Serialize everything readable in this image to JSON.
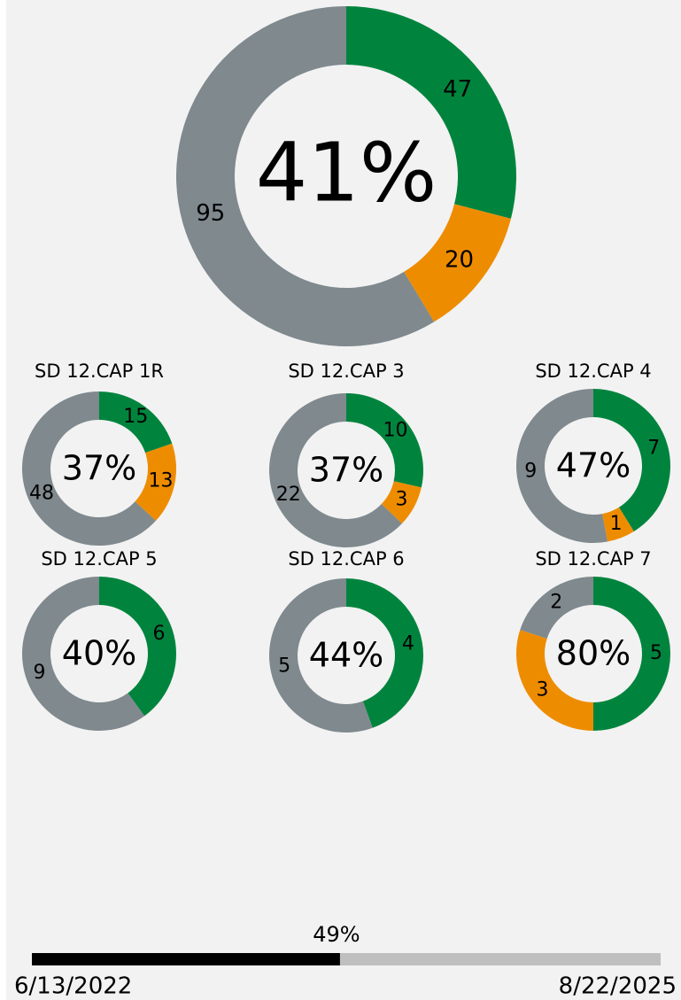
{
  "chart_data": [
    {
      "type": "donut",
      "center_label": "41%",
      "values": [
        47,
        20,
        95
      ],
      "colors": [
        "#00843d",
        "#ee8c00",
        "#7f898e"
      ]
    },
    {
      "type": "donut",
      "title": "SD 12.CAP 1R",
      "center_label": "37%",
      "values": [
        15,
        13,
        48
      ],
      "colors": [
        "#00843d",
        "#ee8c00",
        "#7f898e"
      ]
    },
    {
      "type": "donut",
      "title": "SD 12.CAP 3",
      "center_label": "37%",
      "values": [
        10,
        3,
        22
      ],
      "colors": [
        "#00843d",
        "#ee8c00",
        "#7f898e"
      ]
    },
    {
      "type": "donut",
      "title": "SD 12.CAP 4",
      "center_label": "47%",
      "values": [
        7,
        1,
        9
      ],
      "colors": [
        "#00843d",
        "#ee8c00",
        "#7f898e"
      ]
    },
    {
      "type": "donut",
      "title": "SD 12.CAP 5",
      "center_label": "40%",
      "values": [
        6,
        9
      ],
      "colors": [
        "#00843d",
        "#7f898e"
      ]
    },
    {
      "type": "donut",
      "title": "SD 12.CAP 6",
      "center_label": "44%",
      "values": [
        4,
        5
      ],
      "colors": [
        "#00843d",
        "#7f898e"
      ]
    },
    {
      "type": "donut",
      "title": "SD 12.CAP 7",
      "center_label": "80%",
      "values": [
        5,
        3,
        2
      ],
      "colors": [
        "#00843d",
        "#ee8c00",
        "#7f898e"
      ]
    },
    {
      "type": "progress",
      "values": [
        49
      ],
      "value_labels": [
        "49%"
      ],
      "ylim": [
        0,
        100
      ],
      "start_label": "6/13/2022",
      "end_label": "8/22/2025",
      "colors": [
        "#000000",
        "#bfbfbf"
      ]
    }
  ]
}
